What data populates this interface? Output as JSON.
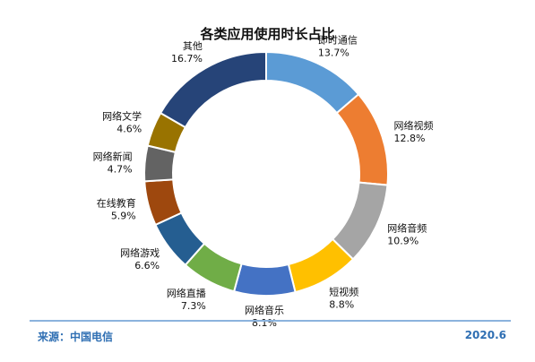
{
  "chart_data": {
    "type": "pie",
    "title": "各类应用使用时长占比",
    "categories": [
      "即时通信",
      "网络视频",
      "网络音频",
      "短视频",
      "网络音乐",
      "网络直播",
      "网络游戏",
      "在线教育",
      "网络新闻",
      "网络文学",
      "其他"
    ],
    "values": [
      13.7,
      12.8,
      10.9,
      8.8,
      8.1,
      7.3,
      6.6,
      5.9,
      4.7,
      4.6,
      16.7
    ],
    "value_labels": [
      "13.7%",
      "12.8%",
      "10.9%",
      "8.8%",
      "8.1%",
      "7.3%",
      "6.6%",
      "5.9%",
      "4.7%",
      "4.6%",
      "16.7%"
    ],
    "colors": [
      "#5b9bd5",
      "#ed7d31",
      "#a5a5a5",
      "#ffc000",
      "#4472c4",
      "#70ad47",
      "#255e91",
      "#9e480e",
      "#636363",
      "#997300",
      "#264478"
    ],
    "donut": true,
    "legend": "none"
  },
  "footer": {
    "source": "来源：中国电信",
    "date": "2020.6"
  }
}
